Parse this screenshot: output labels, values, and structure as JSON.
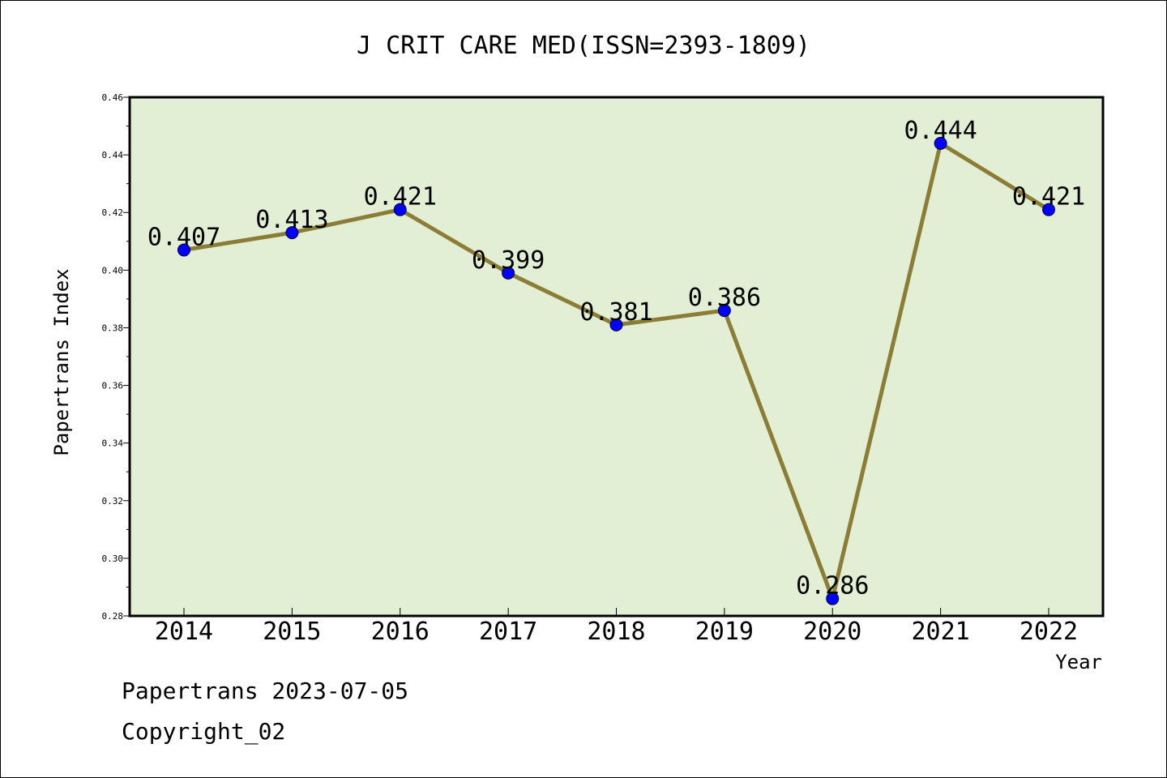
{
  "chart_data": {
    "type": "line",
    "title": "J CRIT CARE MED(ISSN=2393-1809)",
    "xlabel": "Year",
    "ylabel": "Papertrans Index",
    "categories": [
      "2014",
      "2015",
      "2016",
      "2017",
      "2018",
      "2019",
      "2020",
      "2021",
      "2022"
    ],
    "series": [
      {
        "values": [
          0.407,
          0.413,
          0.421,
          0.399,
          0.381,
          0.386,
          0.286,
          0.444,
          0.421
        ],
        "data_labels": [
          "0.407",
          "0.413",
          "0.421",
          "0.399",
          "0.381",
          "0.386",
          "0.286",
          "0.444",
          "0.421"
        ]
      }
    ],
    "ylim": [
      0.28,
      0.46
    ],
    "yticks": [
      "0.28",
      "0.30",
      "0.32",
      "0.34",
      "0.36",
      "0.38",
      "0.40",
      "0.42",
      "0.44",
      "0.46"
    ],
    "grid": false,
    "legend": false,
    "colors": {
      "plot_background": "#e2efd5",
      "line": "#8b7d35",
      "marker": "#0000ff"
    }
  },
  "footer": {
    "date_text": "Papertrans 2023-07-05",
    "copyright_text": "Copyright_02"
  }
}
